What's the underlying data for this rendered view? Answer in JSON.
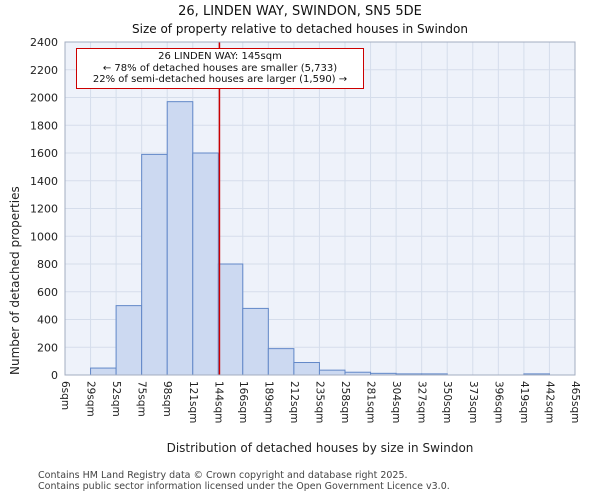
{
  "annotation": {
    "line1": "26 LINDEN WAY: 145sqm",
    "line2": "← 78% of detached houses are smaller (5,733)",
    "line3": "22% of semi-detached houses are larger (1,590) →"
  },
  "footer": {
    "line1": "Contains HM Land Registry data © Crown copyright and database right 2025.",
    "line2": "Contains public sector information licensed under the Open Government Licence v3.0."
  },
  "chart_data": {
    "type": "bar",
    "title": "26, LINDEN WAY, SWINDON, SN5 5DE",
    "subtitle": "Size of property relative to detached houses in Swindon",
    "xlabel": "Distribution of detached houses by size in Swindon",
    "ylabel": "Number of detached properties",
    "bin_edges": [
      6,
      29,
      52,
      75,
      98,
      121,
      144,
      166,
      189,
      212,
      235,
      258,
      281,
      304,
      327,
      350,
      373,
      396,
      419,
      442,
      465
    ],
    "tick_labels": [
      "6sqm",
      "29sqm",
      "52sqm",
      "75sqm",
      "98sqm",
      "121sqm",
      "144sqm",
      "166sqm",
      "189sqm",
      "212sqm",
      "235sqm",
      "258sqm",
      "281sqm",
      "304sqm",
      "327sqm",
      "350sqm",
      "373sqm",
      "396sqm",
      "419sqm",
      "442sqm",
      "465sqm"
    ],
    "values": [
      0,
      50,
      500,
      1590,
      1970,
      1600,
      800,
      480,
      190,
      90,
      35,
      20,
      12,
      8,
      8,
      0,
      0,
      0,
      8,
      0
    ],
    "ylim": [
      0,
      2400
    ],
    "ytick_step": 200,
    "grid": true,
    "marker": {
      "value": 145,
      "color": "#cc0000"
    },
    "colors": {
      "bar_fill": "#ccd9f1",
      "bar_stroke": "#6288c8",
      "grid": "#d5ddeb",
      "plot_bg": "#eef2fa",
      "spine": "#a3adc0",
      "marker": "#cc0000"
    }
  }
}
